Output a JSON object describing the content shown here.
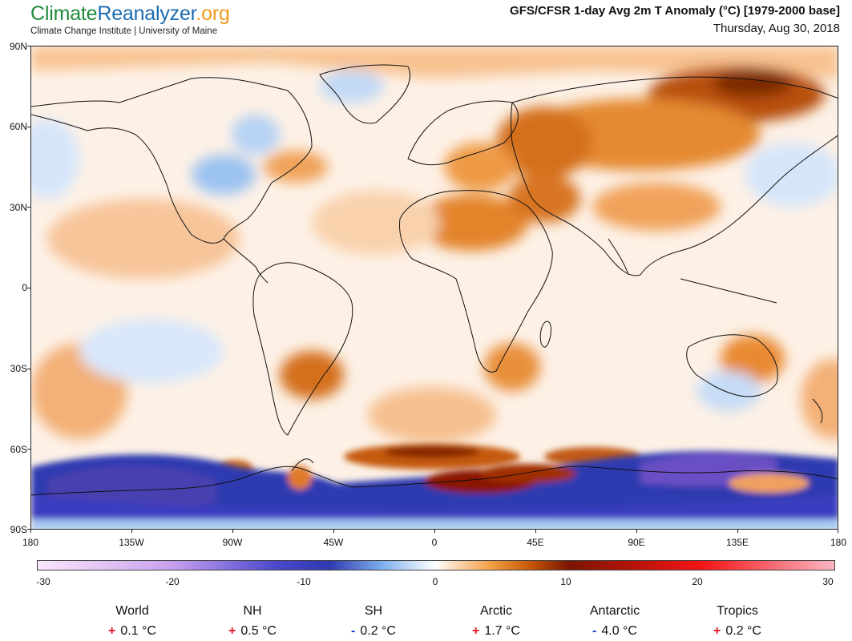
{
  "header": {
    "logo_part1": "Climate",
    "logo_part2": "Reanalyzer",
    "logo_part3": ".org",
    "subtitle": "Climate Change Institute | University of Maine",
    "title": "GFS/CFSR 1-day Avg 2m T Anomaly (°C) [1979-2000 base]",
    "date": "Thursday, Aug 30, 2018"
  },
  "axes": {
    "lat_labels": [
      "90N",
      "60N",
      "30N",
      "0",
      "30S",
      "60S",
      "90S"
    ],
    "lon_labels": [
      "180",
      "135W",
      "90W",
      "45W",
      "0",
      "45E",
      "90E",
      "135E",
      "180"
    ]
  },
  "colorbar": {
    "labels": [
      "-30",
      "-20",
      "-10",
      "0",
      "10",
      "20",
      "30"
    ],
    "colors": {
      "-30": "#fbe6fb",
      "-20": "#c9a2ee",
      "-12": "#4a47cc",
      "-8": "#2f3ab0",
      "-4": "#7fb0ec",
      "-1": "#e3eefc",
      "0": "#ffffff",
      "1": "#fde4cc",
      "4": "#f4a24a",
      "7": "#c85a08",
      "10": "#7a1500",
      "20": "#f41414",
      "30": "#fbb6c4"
    }
  },
  "stats": [
    {
      "name": "World",
      "sign": "+",
      "value": "0.1 °C"
    },
    {
      "name": "NH",
      "sign": "+",
      "value": "0.5 °C"
    },
    {
      "name": "SH",
      "sign": "-",
      "value": "0.2 °C"
    },
    {
      "name": "Arctic",
      "sign": "+",
      "value": "1.7 °C"
    },
    {
      "name": "Antarctic",
      "sign": "-",
      "value": "4.0 °C"
    },
    {
      "name": "Tropics",
      "sign": "+",
      "value": "0.2 °C"
    }
  ]
}
